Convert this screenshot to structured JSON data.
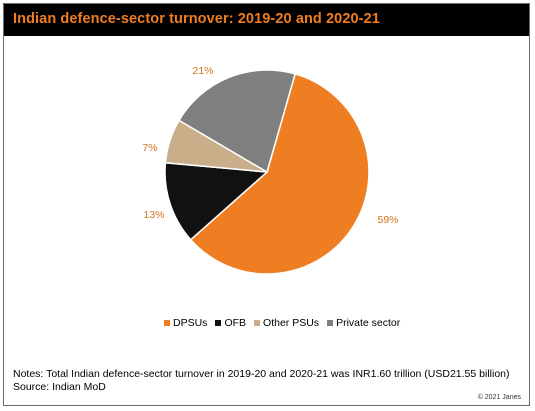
{
  "title": "Indian defence-sector turnover: 2019-20  and 2020-21",
  "chart_data": {
    "type": "pie",
    "title": "Indian defence-sector turnover: 2019-20  and 2020-21",
    "slices": [
      {
        "name": "DPSUs",
        "value": 59,
        "label": "59%",
        "color": "#ef7d21"
      },
      {
        "name": "OFB",
        "value": 13,
        "label": "13%",
        "color": "#111111"
      },
      {
        "name": "Other PSUs",
        "value": 7,
        "label": "7%",
        "color": "#c9ae8a"
      },
      {
        "name": "Private sector",
        "value": 21,
        "label": "21%",
        "color": "#7f7f7f"
      }
    ],
    "legend_position": "bottom",
    "label_color": "#d4741f"
  },
  "notes": {
    "line1": "Notes: Total Indian  defence-sector turnover in 2019-20 and 2020-21 was INR1.60 trillion  (USD21.55 billion)",
    "line2": "Source: Indian MoD"
  },
  "copyright": "© 2021  Janes"
}
